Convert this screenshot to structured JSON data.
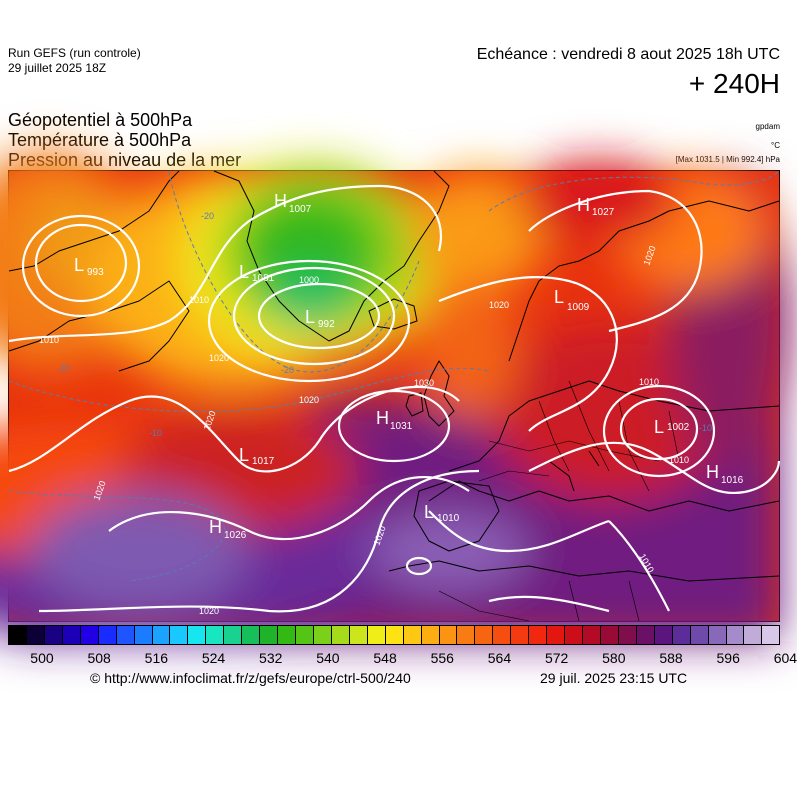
{
  "header": {
    "run_title": "Run GEFS (run controle)",
    "run_date": "29 juillet 2025 18Z",
    "forecast_time": "Echéance : vendredi 8 aout 2025 18h UTC",
    "lead_time": "+ 240H"
  },
  "parameters": {
    "geopotential": "Géopotentiel à 500hPa",
    "temperature": "Température à 500hPa",
    "pressure": "Pression au niveau de la mer"
  },
  "units": {
    "geopotential": "gpdam",
    "temperature": "°C",
    "pressure_range": "[Max 1031.5 | Min 992.4] hPa"
  },
  "pressure_centers": [
    {
      "type": "L",
      "value": "993"
    },
    {
      "type": "H",
      "value": "1007"
    },
    {
      "type": "L",
      "value": "1001"
    },
    {
      "type": "L",
      "value": "992"
    },
    {
      "type": "H",
      "value": "1031"
    },
    {
      "type": "L",
      "value": "1017"
    },
    {
      "type": "H",
      "value": "1026"
    },
    {
      "type": "L",
      "value": "1010"
    },
    {
      "type": "H",
      "value": "1027"
    },
    {
      "type": "L",
      "value": "1009"
    },
    {
      "type": "L",
      "value": "1002"
    },
    {
      "type": "H",
      "value": "1016"
    }
  ],
  "isobar_labels": [
    "1010",
    "1010",
    "1020",
    "1020",
    "1000",
    "1020",
    "1020",
    "1030",
    "1020",
    "1020",
    "1020",
    "1010",
    "1010",
    "1010",
    "1020"
  ],
  "isotherm_labels": [
    "-20",
    "-20",
    "-10",
    "-10",
    "-10"
  ],
  "colorbar": {
    "colors": [
      "#000000",
      "#0d0037",
      "#1a0082",
      "#1c00b8",
      "#2200e6",
      "#1a2bff",
      "#1e55ff",
      "#1c7cff",
      "#1aa3ff",
      "#19c8ff",
      "#17e6f0",
      "#18e6c0",
      "#1ad28f",
      "#17bf5a",
      "#1fb32b",
      "#33b914",
      "#54c415",
      "#7bd01a",
      "#a5db1a",
      "#cde51c",
      "#f0ee19",
      "#fde313",
      "#fdc813",
      "#fcad12",
      "#fb9412",
      "#f97c12",
      "#f76511",
      "#f54e10",
      "#f33a10",
      "#f1270f",
      "#e3170f",
      "#cc0d1a",
      "#b30a26",
      "#990a36",
      "#800d4c",
      "#6a1066",
      "#5a157f",
      "#5c2d99",
      "#704aaa",
      "#8a68b9",
      "#a58bcb",
      "#c0abd9",
      "#d8c7e8"
    ],
    "ticks": [
      "500",
      "508",
      "516",
      "524",
      "532",
      "540",
      "548",
      "556",
      "564",
      "572",
      "580",
      "588",
      "596",
      "604"
    ]
  },
  "footer": {
    "copyright": "© http://www.infoclimat.fr/z/gefs/europe/ctrl-500/240",
    "generated": "29 juil. 2025 23:15 UTC"
  }
}
